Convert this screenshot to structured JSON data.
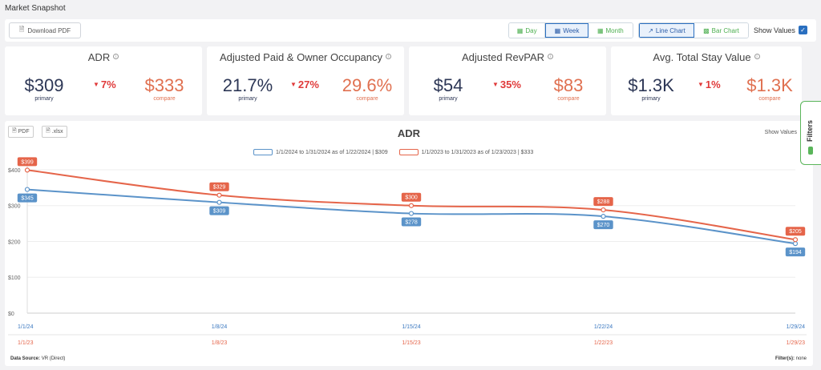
{
  "header": {
    "title": "Market Snapshot"
  },
  "toolbar": {
    "download_label": "Download PDF",
    "period": [
      {
        "label": "Day",
        "active": false
      },
      {
        "label": "Week",
        "active": true
      },
      {
        "label": "Month",
        "active": false
      }
    ],
    "chart_type": [
      {
        "label": "Line Chart",
        "active": true
      },
      {
        "label": "Bar Chart",
        "active": false
      }
    ],
    "show_values_label": "Show Values",
    "show_values_checked": true
  },
  "kpis": [
    {
      "title": "ADR",
      "primary": "$309",
      "primary_label": "primary",
      "change": "7%",
      "compare": "$333",
      "compare_label": "compare"
    },
    {
      "title": "Adjusted Paid & Owner Occupancy",
      "primary": "21.7%",
      "primary_label": "primary",
      "change": "27%",
      "compare": "29.6%",
      "compare_label": "compare"
    },
    {
      "title": "Adjusted RevPAR",
      "primary": "$54",
      "primary_label": "primary",
      "change": "35%",
      "compare": "$83",
      "compare_label": "compare"
    },
    {
      "title": "Avg. Total Stay Value",
      "primary": "$1.3K",
      "primary_label": "primary",
      "change": "1%",
      "compare": "$1.3K",
      "compare_label": "compare"
    }
  ],
  "chart_panel": {
    "pdf_label": "PDF",
    "xlsx_label": ".xlsx",
    "show_values_label": "Show Values",
    "data_source_label": "Data Source:",
    "data_source_value": "VR (Direct)",
    "filters_label": "Filter(s):",
    "filters_value": "none"
  },
  "filters_tab": {
    "label": "Filters"
  },
  "colors": {
    "primary": "#5b93c9",
    "compare": "#e5654a",
    "accent": "#2a6fc0",
    "green": "#4caf50"
  },
  "chart_data": {
    "type": "line",
    "title": "ADR",
    "x": [
      "1/1/24",
      "1/8/24",
      "1/15/24",
      "1/22/24",
      "1/29/24"
    ],
    "x_compare": [
      "1/1/23",
      "1/8/23",
      "1/15/23",
      "1/22/23",
      "1/29/23"
    ],
    "ylim": [
      0,
      420
    ],
    "yticks": [
      0,
      100,
      200,
      300,
      400
    ],
    "ytick_labels": [
      "$0",
      "$100",
      "$200",
      "$300",
      "$400"
    ],
    "grid": true,
    "legend_position": "top-center",
    "series": [
      {
        "name": "1/1/2024 to 1/31/2024 as of 1/22/2024 | $309",
        "values": [
          345,
          309,
          278,
          270,
          194
        ],
        "labels": [
          "$345",
          "$309",
          "$278",
          "$270",
          "$194"
        ],
        "color": "#5b93c9"
      },
      {
        "name": "1/1/2023 to 1/31/2023 as of 1/23/2023 | $333",
        "values": [
          399,
          329,
          300,
          288,
          205
        ],
        "labels": [
          "$399",
          "$329",
          "$300",
          "$288",
          "$205"
        ],
        "color": "#e5654a"
      }
    ]
  }
}
